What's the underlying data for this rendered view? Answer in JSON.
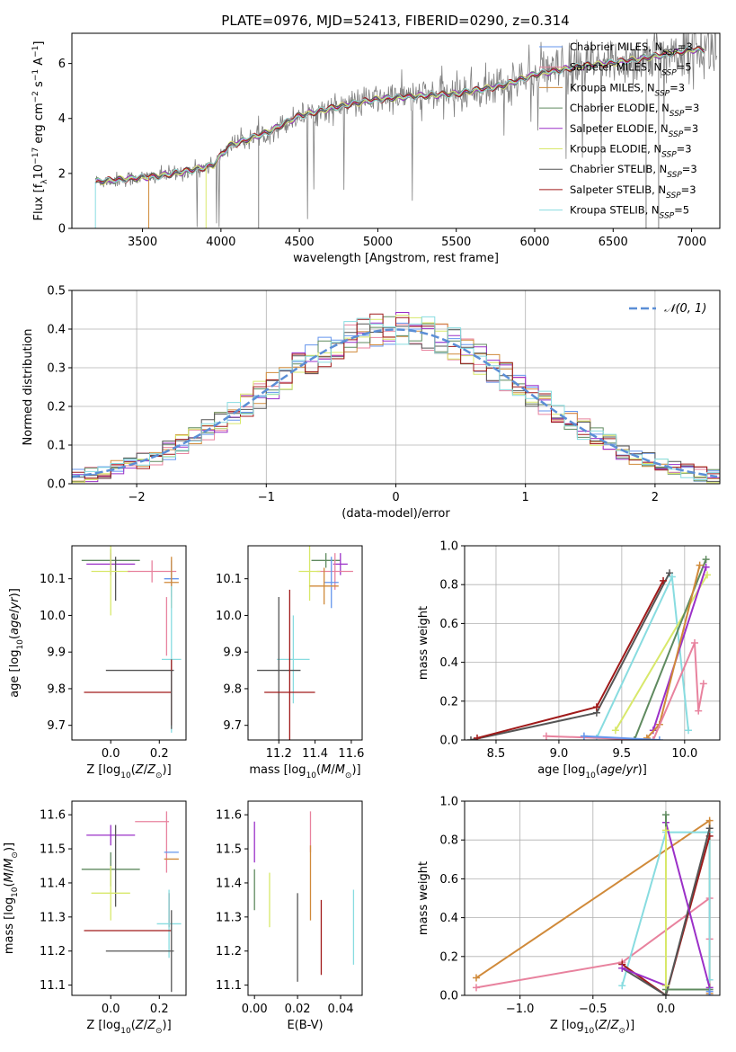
{
  "figure": {
    "title": "PLATE=0976, MJD=52413, FIBERID=0290, z=0.314"
  },
  "chart_data": [
    {
      "id": "spectrum",
      "type": "line",
      "xlabel": "wavelength [Angstrom, rest frame]",
      "ylabel_pre": "Flux [f",
      "ylabel_sub": "λ",
      "ylabel_mid": "10",
      "ylabel_sup": "−17",
      "ylabel_post": " erg cm",
      "ylabel_sup2": "−2",
      "ylabel_post2": " s",
      "ylabel_sup3": "−1",
      "ylabel_post3": " A",
      "ylabel_sup4": "−1",
      "ylabel_end": "]",
      "xlim": [
        3050,
        7180
      ],
      "ylim": [
        0,
        7.1
      ],
      "xticks": [
        3500,
        4000,
        4500,
        5000,
        5500,
        6000,
        6500,
        7000
      ],
      "yticks": [
        0,
        2,
        4,
        6
      ],
      "data_color": "#808080",
      "continuum_anchors": {
        "x": [
          3200,
          3400,
          3600,
          3800,
          3950,
          4050,
          4300,
          4500,
          4800,
          5000,
          5200,
          5500,
          5800,
          6000,
          6300,
          6600,
          6800,
          7000
        ],
        "y": [
          1.7,
          1.8,
          1.9,
          2.1,
          2.3,
          3.0,
          3.5,
          4.1,
          4.5,
          4.7,
          4.8,
          4.9,
          5.2,
          5.6,
          5.9,
          6.1,
          6.3,
          6.5
        ]
      },
      "legend": [
        {
          "label": "Chabrier MILES, N",
          "sub": "SSP",
          "post": "=3",
          "color": "#6495ed"
        },
        {
          "label": "Salpeter MILES, N",
          "sub": "SSP",
          "post": "=5",
          "color": "#e8829e"
        },
        {
          "label": "Kroupa MILES, N",
          "sub": "SSP",
          "post": "=3",
          "color": "#d08a3a"
        },
        {
          "label": "Chabrier ELODIE, N",
          "sub": "SSP",
          "post": "=3",
          "color": "#5f8a5f"
        },
        {
          "label": "Salpeter ELODIE, N",
          "sub": "SSP",
          "post": "=3",
          "color": "#9b30c8"
        },
        {
          "label": "Kroupa ELODIE, N",
          "sub": "SSP",
          "post": "=3",
          "color": "#d8e86a"
        },
        {
          "label": "Chabrier STELIB, N",
          "sub": "SSP",
          "post": "=3",
          "color": "#555555"
        },
        {
          "label": "Salpeter STELIB, N",
          "sub": "SSP",
          "post": "=3",
          "color": "#a01a1a"
        },
        {
          "label": "Kroupa STELIB, N",
          "sub": "SSP",
          "post": "=5",
          "color": "#88dce0"
        }
      ]
    },
    {
      "id": "residuals",
      "type": "histogram",
      "xlabel": "(data-model)/error",
      "ylabel": "Normed distribution",
      "xlim": [
        -2.5,
        2.5
      ],
      "ylim": [
        0,
        0.5
      ],
      "xticks": [
        -2,
        -1,
        0,
        1,
        2
      ],
      "yticks": [
        0.0,
        0.1,
        0.2,
        0.3,
        0.4,
        0.5
      ],
      "grid": true,
      "bin_width": 0.1,
      "gauss_label": "𝒩(0, 1)",
      "gauss_color": "#5b8ed6",
      "legend_position": "top-right"
    },
    {
      "id": "age-vs-Z",
      "type": "errorbar",
      "xlabel": "Z [log",
      "xlabel_sub": "10",
      "xlabel_post": "(Z/Z",
      "xlabel_sub2": "⊙",
      "xlabel_end": ")]",
      "ylabel": "age  [log",
      "ylabel_sub": "10",
      "ylabel_post": "(age/yr)]",
      "xlim": [
        -0.16,
        0.31
      ],
      "ylim": [
        9.66,
        10.19
      ],
      "xticks": [
        0.0,
        0.2
      ],
      "yticks": [
        9.7,
        9.8,
        9.9,
        10.0,
        10.1
      ],
      "points": [
        {
          "x": 0.0,
          "y": 10.15,
          "xerr": 0.12,
          "yerr": 0.03,
          "color": "#5f8a5f"
        },
        {
          "x": 0.0,
          "y": 10.14,
          "xerr": 0.1,
          "yerr": 0.03,
          "color": "#9b30c8"
        },
        {
          "x": 0.02,
          "y": 10.1,
          "xerr": 0.0,
          "yerr": 0.06,
          "color": "#555555"
        },
        {
          "x": 0.0,
          "y": 10.12,
          "xerr": 0.08,
          "yerr": 0.12,
          "color": "#d8e86a"
        },
        {
          "x": 0.17,
          "y": 10.12,
          "xerr": 0.1,
          "yerr": 0.03,
          "color": "#e8829e"
        },
        {
          "x": 0.25,
          "y": 10.1,
          "xerr": 0.03,
          "yerr": 0.05,
          "color": "#6495ed"
        },
        {
          "x": 0.25,
          "y": 10.09,
          "xerr": 0.03,
          "yerr": 0.07,
          "color": "#d08a3a"
        },
        {
          "x": 0.23,
          "y": 9.97,
          "xerr": 0.0,
          "yerr": 0.08,
          "color": "#e8829e"
        },
        {
          "x": 0.25,
          "y": 9.88,
          "xerr": 0.04,
          "yerr": 0.2,
          "color": "#88dce0"
        },
        {
          "x": 0.12,
          "y": 9.85,
          "xerr": 0.14,
          "yerr": 0.0,
          "color": "#555555"
        },
        {
          "x": 0.07,
          "y": 9.79,
          "xerr": 0.18,
          "yerr": 0.0,
          "color": "#a01a1a"
        },
        {
          "x": 0.25,
          "y": 9.79,
          "xerr": 0.0,
          "yerr": 0.09,
          "color": "#a01a1a"
        },
        {
          "x": 0.25,
          "y": 9.77,
          "xerr": 0.0,
          "yerr": 0.08,
          "color": "#555555"
        }
      ]
    },
    {
      "id": "age-vs-mass",
      "type": "errorbar",
      "xlabel": "mass [log",
      "xlabel_sub": "10",
      "xlabel_post": "(M/M",
      "xlabel_sub2": "⊙",
      "xlabel_end": ")]",
      "xlim": [
        11.03,
        11.66
      ],
      "ylim": [
        9.66,
        10.19
      ],
      "xticks": [
        11.2,
        11.4,
        11.6
      ],
      "yticks": [
        9.7,
        9.8,
        9.9,
        10.0,
        10.1
      ],
      "points": [
        {
          "x": 11.46,
          "y": 10.15,
          "xerr": 0.08,
          "yerr": 0.02,
          "color": "#5f8a5f"
        },
        {
          "x": 11.54,
          "y": 10.14,
          "xerr": 0.04,
          "yerr": 0.03,
          "color": "#9b30c8"
        },
        {
          "x": 11.51,
          "y": 10.12,
          "xerr": 0.1,
          "yerr": 0.05,
          "color": "#e8829e"
        },
        {
          "x": 11.37,
          "y": 10.12,
          "xerr": 0.06,
          "yerr": 0.08,
          "color": "#d8e86a"
        },
        {
          "x": 11.49,
          "y": 10.09,
          "xerr": 0.04,
          "yerr": 0.07,
          "color": "#6495ed"
        },
        {
          "x": 11.45,
          "y": 10.08,
          "xerr": 0.08,
          "yerr": 0.05,
          "color": "#d08a3a"
        },
        {
          "x": 11.28,
          "y": 9.88,
          "xerr": 0.09,
          "yerr": 0.12,
          "color": "#88dce0"
        },
        {
          "x": 11.2,
          "y": 9.85,
          "xerr": 0.12,
          "yerr": 0.2,
          "color": "#555555"
        },
        {
          "x": 11.26,
          "y": 9.79,
          "xerr": 0.14,
          "yerr": 0.28,
          "color": "#a01a1a"
        }
      ]
    },
    {
      "id": "weight-vs-age",
      "type": "line",
      "xlabel": "age  [log",
      "xlabel_sub": "10",
      "xlabel_post": "(age/yr)]",
      "ylabel": "mass weight",
      "xlim": [
        8.25,
        10.28
      ],
      "ylim": [
        0,
        1.0
      ],
      "xticks": [
        8.5,
        9.0,
        9.5,
        10.0
      ],
      "yticks": [
        0.0,
        0.2,
        0.4,
        0.6,
        0.8,
        1.0
      ],
      "grid": true,
      "series": [
        {
          "color": "#555555",
          "x": [
            8.3,
            9.3,
            9.88
          ],
          "y": [
            0.0,
            0.14,
            0.86
          ]
        },
        {
          "color": "#a01a1a",
          "x": [
            8.35,
            9.3,
            9.83
          ],
          "y": [
            0.01,
            0.17,
            0.82
          ]
        },
        {
          "color": "#88dce0",
          "x": [
            9.3,
            9.9,
            10.03
          ],
          "y": [
            0.01,
            0.84,
            0.05
          ]
        },
        {
          "color": "#d8e86a",
          "x": [
            9.45,
            10.18
          ],
          "y": [
            0.05,
            0.85
          ]
        },
        {
          "color": "#5f8a5f",
          "x": [
            9.6,
            10.17
          ],
          "y": [
            0.0,
            0.93
          ]
        },
        {
          "color": "#9b30c8",
          "x": [
            9.75,
            10.17
          ],
          "y": [
            0.05,
            0.89
          ]
        },
        {
          "color": "#d08a3a",
          "x": [
            9.7,
            9.8,
            10.12
          ],
          "y": [
            0.01,
            0.08,
            0.9
          ]
        },
        {
          "color": "#e8829e",
          "x": [
            8.9,
            9.75,
            10.08,
            10.11,
            10.15
          ],
          "y": [
            0.02,
            0.0,
            0.5,
            0.15,
            0.29
          ]
        },
        {
          "color": "#6495ed",
          "x": [
            9.2,
            9.8
          ],
          "y": [
            0.02,
            0.0
          ]
        }
      ]
    },
    {
      "id": "mass-vs-Z",
      "type": "errorbar",
      "xlabel": "Z [log",
      "xlabel_sub": "10",
      "xlabel_post": "(Z/Z",
      "xlabel_sub2": "⊙",
      "xlabel_end": ")]",
      "ylabel": "mass [log",
      "ylabel_sub": "10",
      "ylabel_post": "(M/M",
      "ylabel_sub2": "⊙",
      "ylabel_end": ")]",
      "xlim": [
        -0.16,
        0.31
      ],
      "ylim": [
        11.07,
        11.64
      ],
      "xticks": [
        0.0,
        0.2
      ],
      "yticks": [
        11.1,
        11.2,
        11.3,
        11.4,
        11.5,
        11.6
      ],
      "points": [
        {
          "x": 0.0,
          "y": 11.54,
          "xerr": 0.1,
          "yerr": 0.03,
          "color": "#9b30c8"
        },
        {
          "x": 0.0,
          "y": 11.44,
          "xerr": 0.12,
          "yerr": 0.05,
          "color": "#5f8a5f"
        },
        {
          "x": 0.02,
          "y": 11.45,
          "xerr": 0.0,
          "yerr": 0.12,
          "color": "#555555"
        },
        {
          "x": 0.0,
          "y": 11.37,
          "xerr": 0.08,
          "yerr": 0.08,
          "color": "#d8e86a"
        },
        {
          "x": 0.17,
          "y": 11.58,
          "xerr": 0.07,
          "yerr": 0.0,
          "color": "#e8829e"
        },
        {
          "x": 0.23,
          "y": 11.52,
          "xerr": 0.0,
          "yerr": 0.09,
          "color": "#e8829e"
        },
        {
          "x": 0.25,
          "y": 11.49,
          "xerr": 0.03,
          "yerr": 0.0,
          "color": "#6495ed"
        },
        {
          "x": 0.25,
          "y": 11.47,
          "xerr": 0.03,
          "yerr": 0.0,
          "color": "#d08a3a"
        },
        {
          "x": 0.24,
          "y": 11.32,
          "xerr": 0.0,
          "yerr": 0.05,
          "color": "#a01a1a"
        },
        {
          "x": 0.24,
          "y": 11.28,
          "xerr": 0.05,
          "yerr": 0.1,
          "color": "#88dce0"
        },
        {
          "x": 0.07,
          "y": 11.26,
          "xerr": 0.18,
          "yerr": 0.0,
          "color": "#a01a1a"
        },
        {
          "x": 0.12,
          "y": 11.2,
          "xerr": 0.14,
          "yerr": 0.0,
          "color": "#555555"
        },
        {
          "x": 0.25,
          "y": 11.2,
          "xerr": 0.0,
          "yerr": 0.12,
          "color": "#555555"
        }
      ]
    },
    {
      "id": "mass-vs-ebv",
      "type": "errorbar",
      "xlabel": "E(B-V)",
      "xlim": [
        -0.003,
        0.05
      ],
      "ylim": [
        11.07,
        11.64
      ],
      "xticks": [
        0.0,
        0.02,
        0.04
      ],
      "yticks": [
        11.1,
        11.2,
        11.3,
        11.4,
        11.5,
        11.6
      ],
      "points": [
        {
          "x": 0.0,
          "y": 11.52,
          "xerr": 0,
          "yerr": 0.06,
          "color": "#9b30c8"
        },
        {
          "x": 0.0,
          "y": 11.38,
          "xerr": 0,
          "yerr": 0.06,
          "color": "#5f8a5f"
        },
        {
          "x": 0.007,
          "y": 11.35,
          "xerr": 0,
          "yerr": 0.08,
          "color": "#d8e86a"
        },
        {
          "x": 0.02,
          "y": 11.24,
          "xerr": 0,
          "yerr": 0.13,
          "color": "#555555"
        },
        {
          "x": 0.026,
          "y": 11.55,
          "xerr": 0,
          "yerr": 0.06,
          "color": "#e8829e"
        },
        {
          "x": 0.026,
          "y": 11.4,
          "xerr": 0,
          "yerr": 0.11,
          "color": "#d08a3a"
        },
        {
          "x": 0.031,
          "y": 11.24,
          "xerr": 0,
          "yerr": 0.11,
          "color": "#a01a1a"
        },
        {
          "x": 0.046,
          "y": 11.27,
          "xerr": 0,
          "yerr": 0.11,
          "color": "#88dce0"
        }
      ]
    },
    {
      "id": "weight-vs-Z",
      "type": "line",
      "xlabel": "Z [log",
      "xlabel_sub": "10",
      "xlabel_post": "(Z/Z",
      "xlabel_sub2": "⊙",
      "xlabel_end": ")]",
      "ylabel": "mass weight",
      "xlim": [
        -1.38,
        0.37
      ],
      "ylim": [
        0,
        1.0
      ],
      "xticks": [
        -1.0,
        -0.5,
        0.0
      ],
      "yticks": [
        0.0,
        0.2,
        0.4,
        0.6,
        0.8,
        1.0
      ],
      "grid": true,
      "series": [
        {
          "color": "#d08a3a",
          "x": [
            -1.3,
            0.3,
            0.3
          ],
          "y": [
            0.09,
            0.9,
            0.01
          ]
        },
        {
          "color": "#e8829e",
          "x": [
            -1.3,
            -0.3,
            0.3,
            0.3
          ],
          "y": [
            0.04,
            0.17,
            0.5,
            0.29
          ]
        },
        {
          "color": "#88dce0",
          "x": [
            -0.3,
            0.0,
            0.3,
            0.3
          ],
          "y": [
            0.05,
            0.84,
            0.84,
            0.08
          ]
        },
        {
          "color": "#a01a1a",
          "x": [
            -0.3,
            0.0,
            0.3
          ],
          "y": [
            0.16,
            0.0,
            0.82
          ]
        },
        {
          "color": "#555555",
          "x": [
            -0.3,
            0.0,
            0.3
          ],
          "y": [
            0.14,
            0.0,
            0.86
          ]
        },
        {
          "color": "#9b30c8",
          "x": [
            -0.3,
            0.0,
            0.0,
            0.3
          ],
          "y": [
            0.14,
            0.05,
            0.89,
            0.04
          ]
        },
        {
          "color": "#5f8a5f",
          "x": [
            0.0,
            0.0,
            0.3
          ],
          "y": [
            0.93,
            0.03,
            0.03
          ]
        },
        {
          "color": "#d8e86a",
          "x": [
            0.0,
            0.0
          ],
          "y": [
            0.85,
            0.05
          ]
        },
        {
          "color": "#6495ed",
          "x": [
            0.3,
            0.3
          ],
          "y": [
            0.02,
            0.0
          ]
        }
      ]
    }
  ]
}
